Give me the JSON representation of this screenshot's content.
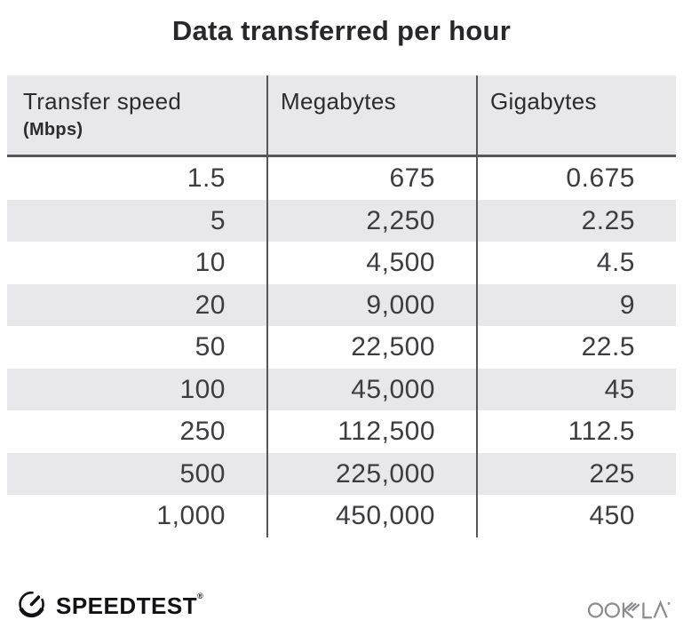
{
  "title": "Data transferred per hour",
  "table": {
    "columns": [
      {
        "label": "Transfer speed",
        "sublabel": "(Mbps)"
      },
      {
        "label": "Megabytes",
        "sublabel": ""
      },
      {
        "label": "Gigabytes",
        "sublabel": ""
      }
    ],
    "rows": [
      [
        "1.5",
        "675",
        "0.675"
      ],
      [
        "5",
        "2,250",
        "2.25"
      ],
      [
        "10",
        "4,500",
        "4.5"
      ],
      [
        "20",
        "9,000",
        "9"
      ],
      [
        "50",
        "22,500",
        "22.5"
      ],
      [
        "100",
        "45,000",
        "45"
      ],
      [
        "250",
        "112,500",
        "112.5"
      ],
      [
        "500",
        "225,000",
        "225"
      ],
      [
        "1,000",
        "450,000",
        "450"
      ]
    ]
  },
  "footer": {
    "speedtest_label": "SPEEDTEST",
    "speedtest_trademark": "®",
    "ookla_label": "OOKLA"
  },
  "colors": {
    "header_bg": "#e8e8ea",
    "row_alt_bg": "#e8e8ea",
    "divider": "#57575a",
    "text_dark": "#28282b",
    "text_number": "#3d3d40",
    "ookla_gray": "#8b8b8d"
  },
  "chart_data": {
    "type": "table",
    "title": "Data transferred per hour",
    "columns": [
      "Transfer speed (Mbps)",
      "Megabytes",
      "Gigabytes"
    ],
    "rows": [
      [
        1.5,
        675,
        0.675
      ],
      [
        5,
        2250,
        2.25
      ],
      [
        10,
        4500,
        4.5
      ],
      [
        20,
        9000,
        9
      ],
      [
        50,
        22500,
        22.5
      ],
      [
        100,
        45000,
        45
      ],
      [
        250,
        112500,
        112.5
      ],
      [
        500,
        225000,
        225
      ],
      [
        1000,
        450000,
        450
      ]
    ],
    "layout": {
      "grid": false,
      "row_striping": "alternate",
      "number_alignment": "right"
    }
  }
}
